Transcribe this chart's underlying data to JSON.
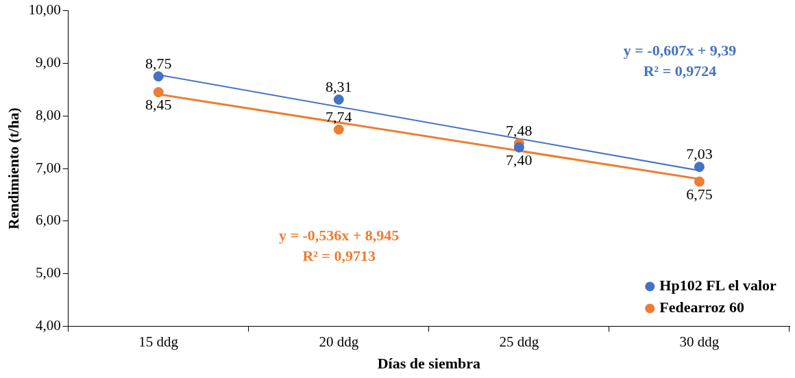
{
  "chart_data": {
    "type": "scatter",
    "xlabel": "Días de siembra",
    "ylabel": "Rendimiento (t/ha)",
    "categories": [
      "15 ddg",
      "20 ddg",
      "25 ddg",
      "30 ddg"
    ],
    "series": [
      {
        "name": "Hp102 FL el valor",
        "color": "#4472c4",
        "values": [
          8.75,
          8.31,
          7.4,
          7.03
        ],
        "value_labels": [
          "8,75",
          "8,31",
          "7,40",
          "7,03"
        ]
      },
      {
        "name": "Fedearroz 60",
        "color": "#ed7d31",
        "values": [
          8.45,
          7.74,
          7.48,
          6.75
        ],
        "value_labels": [
          "8,45",
          "7,74",
          "7,48",
          "6,75"
        ]
      },
      {
        "type": "line",
        "color": "#4472c4",
        "marker": "none",
        "x": [
          "15 ddg",
          "30 ddg"
        ],
        "values": [
          8.78,
          6.96
        ]
      },
      {
        "type": "line",
        "color": "#ed7d31",
        "marker": "none",
        "x": [
          "15 ddg",
          "30 ddg"
        ],
        "values": [
          8.41,
          6.8
        ]
      }
    ],
    "ylim": [
      4,
      10
    ],
    "yticks": [
      {
        "value": 4,
        "label": "4,00"
      },
      {
        "value": 5,
        "label": "5,00"
      },
      {
        "value": 6,
        "label": "6,00"
      },
      {
        "value": 7,
        "label": "7,00"
      },
      {
        "value": 8,
        "label": "8,00"
      },
      {
        "value": 9,
        "label": "9,00"
      },
      {
        "value": 10,
        "label": "10,00"
      }
    ],
    "grid": false,
    "legend": "bottom right",
    "marker": "circle",
    "annotations": [
      "y = -0,607x + 9,39\nR² = 0,9724",
      "y = -0,536x + 8,945\nR² = 0,9713"
    ]
  }
}
